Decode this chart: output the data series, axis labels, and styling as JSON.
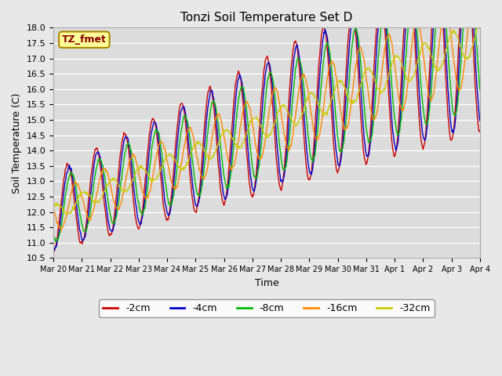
{
  "title": "Tonzi Soil Temperature Set D",
  "xlabel": "Time",
  "ylabel": "Soil Temperature (C)",
  "ylim": [
    10.5,
    18.0
  ],
  "yticks": [
    10.5,
    11.0,
    11.5,
    12.0,
    12.5,
    13.0,
    13.5,
    14.0,
    14.5,
    15.0,
    15.5,
    16.0,
    16.5,
    17.0,
    17.5,
    18.0
  ],
  "xtick_labels": [
    "Mar 20",
    "Mar 21",
    "Mar 22",
    "Mar 23",
    "Mar 24",
    "Mar 25",
    "Mar 26",
    "Mar 27",
    "Mar 28",
    "Mar 29",
    "Mar 30",
    "Mar 31",
    "Apr 1",
    "Apr 2",
    "Apr 3",
    "Apr 4"
  ],
  "legend_label": "TZ_fmet",
  "series_labels": [
    "-2cm",
    "-4cm",
    "-8cm",
    "-16cm",
    "-32cm"
  ],
  "series_colors": [
    "#cc0000",
    "#0000cc",
    "#00bb00",
    "#ff8800",
    "#cccc00"
  ],
  "background_color": "#dcdcdc",
  "grid_color": "#ffffff",
  "legend_box_facecolor": "#ffff99",
  "legend_box_edgecolor": "#aa8800",
  "fig_facecolor": "#e8e8e8",
  "n_days": 15,
  "base_temp": 12.0,
  "trend_per_day": 0.38,
  "phase_lags_days": [
    0.0,
    0.05,
    0.12,
    0.28,
    0.55
  ],
  "depth_amplitude_factors": [
    1.0,
    0.92,
    0.75,
    0.48,
    0.18
  ],
  "base_amplitude": 1.3,
  "amplitude_growth": 0.12
}
